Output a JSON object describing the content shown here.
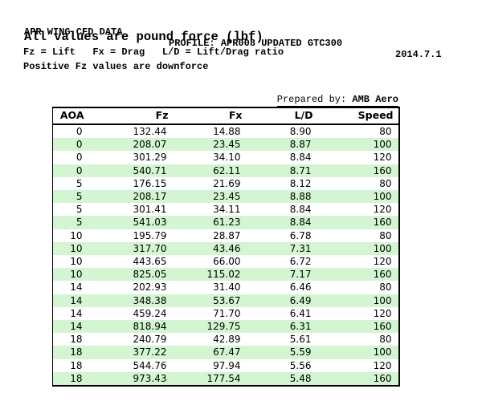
{
  "header": {
    "title": "APR WING CFD DATA",
    "profile": "PROFILE: APR008 UPDATED GTC300",
    "date": "2014.7.1",
    "units_note": "All values are pound force (lbf)",
    "legend": "Fz = Lift   Fx = Drag   L/D = Lift/Drag ratio",
    "downforce_note": "Positive Fz values are downforce"
  },
  "prepared_by": {
    "label": "Prepared by: ",
    "value": "AMB Aero"
  },
  "table": {
    "columns": [
      "AOA",
      "Fz",
      "Fx",
      "L/D",
      "Speed"
    ],
    "column_keys": [
      "aoa",
      "fz",
      "fx",
      "ld",
      "speed"
    ],
    "rows": [
      [
        "0",
        "132.44",
        "14.88",
        "8.90",
        "80"
      ],
      [
        "0",
        "208.07",
        "23.45",
        "8.87",
        "100"
      ],
      [
        "0",
        "301.29",
        "34.10",
        "8.84",
        "120"
      ],
      [
        "0",
        "540.71",
        "62.11",
        "8.71",
        "160"
      ],
      [
        "5",
        "176.15",
        "21.69",
        "8.12",
        "80"
      ],
      [
        "5",
        "208.17",
        "23.45",
        "8.88",
        "100"
      ],
      [
        "5",
        "301.41",
        "34.11",
        "8.84",
        "120"
      ],
      [
        "5",
        "541.03",
        "61.23",
        "8.84",
        "160"
      ],
      [
        "10",
        "195.79",
        "28.87",
        "6.78",
        "80"
      ],
      [
        "10",
        "317.70",
        "43.46",
        "7.31",
        "100"
      ],
      [
        "10",
        "443.65",
        "66.00",
        "6.72",
        "120"
      ],
      [
        "10",
        "825.05",
        "115.02",
        "7.17",
        "160"
      ],
      [
        "14",
        "202.93",
        "31.40",
        "6.46",
        "80"
      ],
      [
        "14",
        "348.38",
        "53.67",
        "6.49",
        "100"
      ],
      [
        "14",
        "459.24",
        "71.70",
        "6.41",
        "120"
      ],
      [
        "14",
        "818.94",
        "129.75",
        "6.31",
        "160"
      ],
      [
        "18",
        "240.79",
        "42.89",
        "5.61",
        "80"
      ],
      [
        "18",
        "377.22",
        "67.47",
        "5.59",
        "100"
      ],
      [
        "18",
        "544.76",
        "97.94",
        "5.56",
        "120"
      ],
      [
        "18",
        "973.43",
        "177.54",
        "5.48",
        "160"
      ]
    ]
  },
  "colors": {
    "zebra_green": "#d3f5d1",
    "border": "#000000",
    "text": "#000000",
    "background": "#ffffff"
  }
}
